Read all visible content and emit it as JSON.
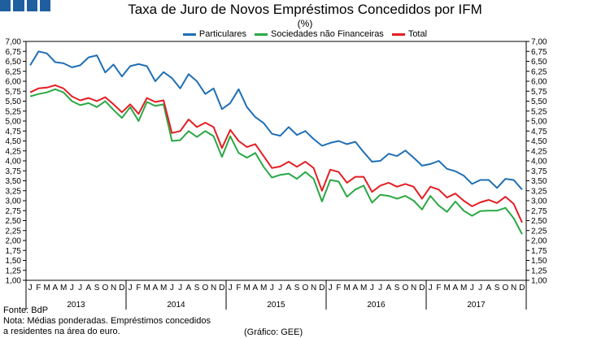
{
  "header": {
    "title": "Taxa de Juro de Novos Empréstimos Concedidos por IFM",
    "unit": "(%)"
  },
  "footer": {
    "source": "Fonte: BdP",
    "note_line1": "Nota: Médias ponderadas. Empréstimos concedidos",
    "note_line2": "a residentes na área do euro.",
    "credit": "(Gráfico: GEE)"
  },
  "colors": {
    "particulares": "#1f6fb5",
    "sociedades": "#2aa845",
    "total": "#e31e24",
    "axis": "#000000"
  },
  "icons": [
    "logo-squares"
  ],
  "chart_data": {
    "type": "line",
    "title": "Taxa de Juro de Novos Empréstimos Concedidos por IFM",
    "ylabel": "(%)",
    "ylim": [
      1.0,
      7.0
    ],
    "ytick_step": 0.25,
    "ytick_labels": [
      "1,00",
      "1,25",
      "1,50",
      "1,75",
      "2,00",
      "2,25",
      "2,50",
      "2,75",
      "3,00",
      "3,25",
      "3,50",
      "3,75",
      "4,00",
      "4,25",
      "4,50",
      "4,75",
      "5,00",
      "5,25",
      "5,50",
      "5,75",
      "6,00",
      "6,25",
      "6,50",
      "6,75",
      "7,00"
    ],
    "month_labels": [
      "J",
      "F",
      "M",
      "A",
      "M",
      "J",
      "J",
      "A",
      "S",
      "O",
      "N",
      "D"
    ],
    "years": [
      "2013",
      "2014",
      "2015",
      "2016",
      "2017"
    ],
    "legend_position": "top-center",
    "grid": false,
    "series": [
      {
        "name": "Particulares",
        "color": "#1f6fb5",
        "values": [
          6.4,
          6.75,
          6.7,
          6.48,
          6.45,
          6.35,
          6.4,
          6.6,
          6.65,
          6.22,
          6.42,
          6.12,
          6.38,
          6.43,
          6.38,
          6.0,
          6.23,
          6.08,
          5.82,
          6.18,
          6.0,
          5.68,
          5.82,
          5.3,
          5.45,
          5.8,
          5.35,
          5.1,
          4.95,
          4.68,
          4.63,
          4.85,
          4.65,
          4.75,
          4.55,
          4.38,
          4.45,
          4.5,
          4.42,
          4.48,
          4.22,
          3.98,
          4.0,
          4.18,
          4.12,
          4.26,
          4.08,
          3.88,
          3.92,
          4.0,
          3.8,
          3.74,
          3.63,
          3.42,
          3.52,
          3.52,
          3.32,
          3.55,
          3.52,
          3.28
        ]
      },
      {
        "name": "Sociedades não Financeiras",
        "color": "#2aa845",
        "values": [
          5.62,
          5.68,
          5.72,
          5.8,
          5.72,
          5.5,
          5.4,
          5.45,
          5.35,
          5.5,
          5.28,
          5.08,
          5.35,
          5.0,
          5.48,
          5.38,
          5.42,
          4.5,
          4.52,
          4.75,
          4.6,
          4.75,
          4.62,
          4.1,
          4.62,
          4.2,
          4.08,
          4.2,
          3.85,
          3.58,
          3.65,
          3.68,
          3.55,
          3.72,
          3.55,
          2.98,
          3.52,
          3.48,
          3.1,
          3.28,
          3.38,
          2.95,
          3.15,
          3.12,
          3.05,
          3.12,
          3.0,
          2.78,
          3.12,
          2.88,
          2.72,
          2.98,
          2.75,
          2.62,
          2.74,
          2.75,
          2.75,
          2.82,
          2.56,
          2.16
        ]
      },
      {
        "name": "Total",
        "color": "#e31e24",
        "values": [
          5.72,
          5.82,
          5.84,
          5.9,
          5.82,
          5.62,
          5.52,
          5.58,
          5.5,
          5.6,
          5.42,
          5.22,
          5.42,
          5.18,
          5.58,
          5.48,
          5.52,
          4.7,
          4.75,
          5.04,
          4.85,
          4.96,
          4.85,
          4.32,
          4.78,
          4.5,
          4.35,
          4.42,
          4.12,
          3.82,
          3.86,
          3.98,
          3.85,
          3.98,
          3.82,
          3.25,
          3.78,
          3.72,
          3.45,
          3.6,
          3.6,
          3.22,
          3.38,
          3.45,
          3.35,
          3.42,
          3.35,
          3.05,
          3.35,
          3.28,
          3.08,
          3.18,
          3.0,
          2.86,
          2.96,
          3.02,
          2.94,
          3.1,
          2.92,
          2.45
        ]
      }
    ]
  }
}
